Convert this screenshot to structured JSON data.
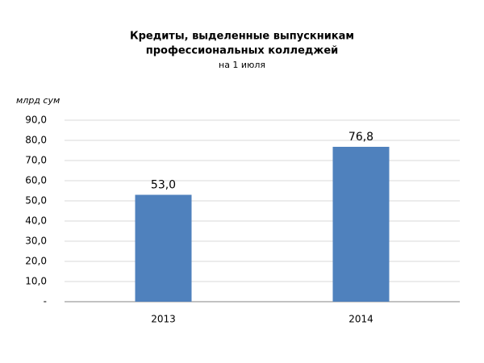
{
  "chart_data": {
    "type": "bar",
    "title": [
      "Кредиты, выделенные выпускникам",
      "профессиональных колледжей"
    ],
    "subtitle": "на 1 июля",
    "y_label": "млрд сум",
    "categories": [
      "2013",
      "2014"
    ],
    "values": [
      53.0,
      76.8
    ],
    "value_labels": [
      "53,0",
      "76,8"
    ],
    "color": "#4f81bd",
    "ylim": [
      0,
      90
    ],
    "yticks": [
      {
        "value": 0,
        "label": "-"
      },
      {
        "value": 10,
        "label": "10,0"
      },
      {
        "value": 20,
        "label": "20,0"
      },
      {
        "value": 30,
        "label": "30,0"
      },
      {
        "value": 40,
        "label": "40,0"
      },
      {
        "value": 50,
        "label": "50,0"
      },
      {
        "value": 60,
        "label": "60,0"
      },
      {
        "value": 70,
        "label": "70,0"
      },
      {
        "value": 80,
        "label": "80,0"
      },
      {
        "value": 90,
        "label": "90,0"
      }
    ],
    "grid": true
  }
}
